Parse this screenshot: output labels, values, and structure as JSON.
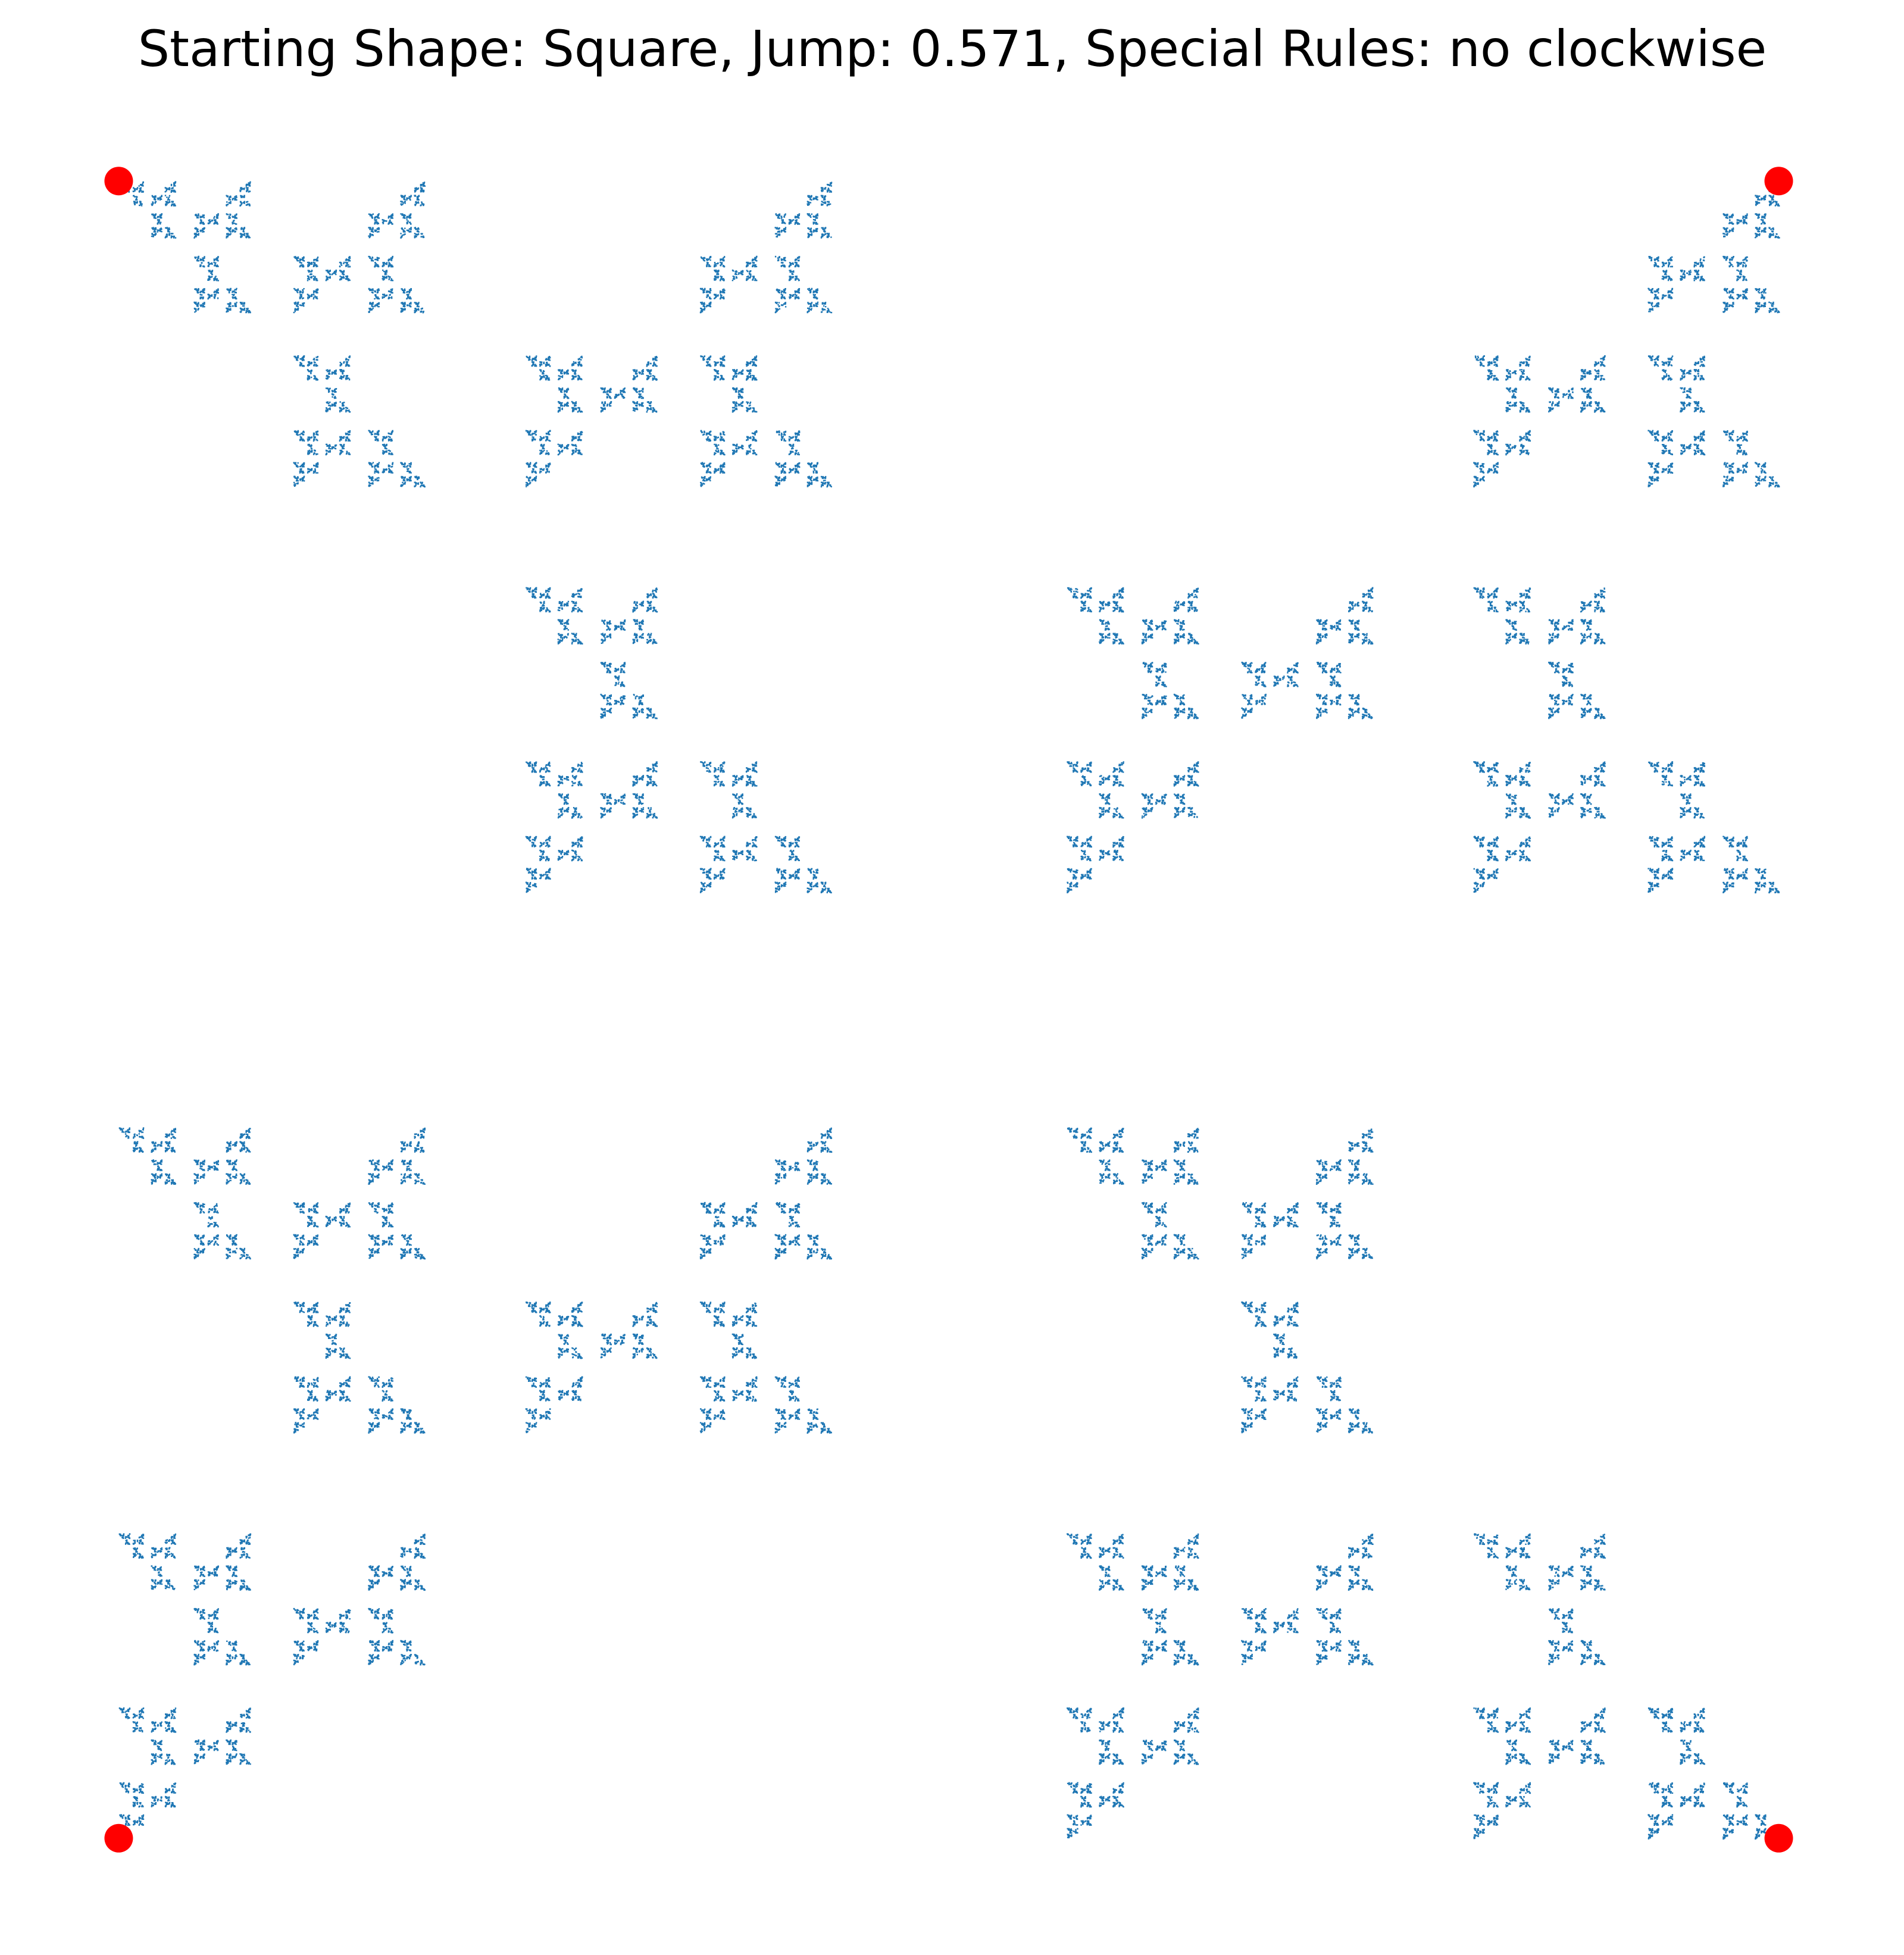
{
  "chart_data": {
    "type": "scatter",
    "title": "Starting Shape: Square, Jump: 0.571, Special Rules: no clockwise",
    "jump": 0.571,
    "x": [
      0,
      1,
      1,
      0
    ],
    "y": [
      0,
      0,
      1,
      1
    ],
    "vertex_color": "#ff0000",
    "point_color": "#1f77b4",
    "xlim": [
      -0.05,
      1.05
    ],
    "ylim": [
      -0.05,
      1.05
    ],
    "axis": false
  }
}
